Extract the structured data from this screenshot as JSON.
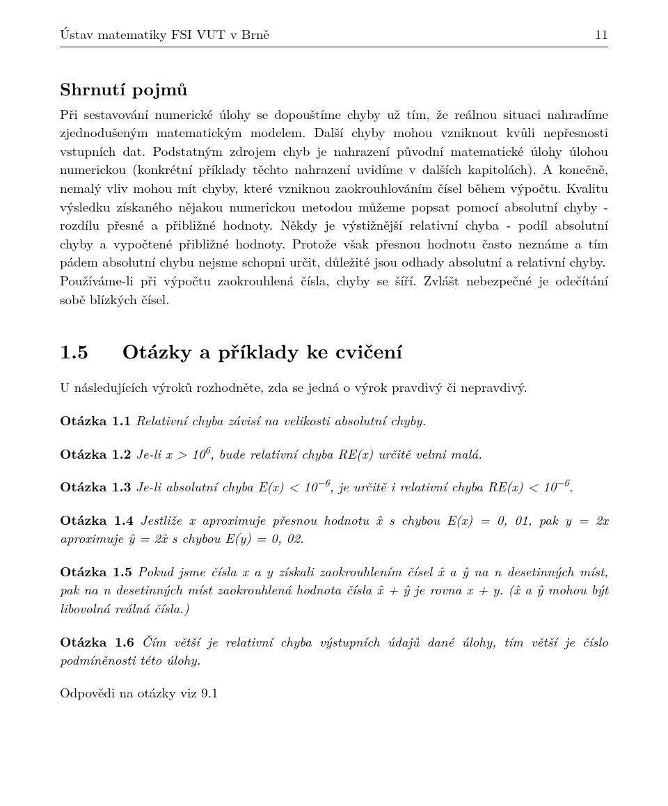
{
  "header": {
    "left": "Ústav matematiky FSI VUT v Brně",
    "page_number": "11"
  },
  "subsection": {
    "title": "Shrnutí pojmů",
    "paragraph": "Při sestavování numerické úlohy se dopouštíme chyby už tím, že reálnou situaci nahradíme zjednodušeným matematickým modelem. Další chyby mohou vzniknout kvůli nepřesnosti vstupních dat. Podstatným zdrojem chyb je nahrazení původní matematické úlohy úlohou numerickou (konkrétní příklady těchto nahrazení uvidíme v dalších kapitolách). A konečně, nemalý vliv mohou mít chyby, které vzniknou zaokrouhlováním čísel během výpočtu. Kvalitu výsledku získaného nějakou numerickou metodou můžeme popsat pomocí absolutní chyby - rozdílu přesné a přibližné hodnoty. Někdy je výstižnější relativní chyba - podíl absolutní chyby a vypočtené přibližné hodnoty. Protože však přesnou hodnotu často neznáme a tím pádem absolutní chybu nejsme schopni určit, důležité jsou odhady absolutní a relativní chyby.",
    "paragraph2": "Používáme-li při výpočtu zaokrouhlená čísla, chyby se šíří. Zvlášt nebezpečné je odečítání sobě blízkých čísel."
  },
  "section": {
    "number": "1.5",
    "title": "Otázky a příklady ke cvičení",
    "intro": "U následujících výroků rozhodněte, zda se jedná o výrok pravdivý či nepravdivý."
  },
  "questions": {
    "q1": {
      "label": "Otázka 1.1",
      "text": "Relativní chyba závisí na velikosti absolutní chyby."
    },
    "q2": {
      "label": "Otázka 1.2",
      "pre": "Je-li x > 10",
      "exp": "6",
      "post": ", bude relativní chyba RE(x) určitě velmi malá."
    },
    "q3": {
      "label": "Otázka 1.3",
      "pre": "Je-li absolutní chyba E(x) < 10",
      "exp1": "−6",
      "mid": ", je určitě i relativní chyba RE(x) < 10",
      "exp2": "−6",
      "post": "."
    },
    "q4": {
      "label": "Otázka 1.4",
      "text": "Jestliže x aproximuje přesnou hodnotu x̂ s chybou E(x) = 0, 01, pak y = 2x aproximuje ŷ = 2x̂ s chybou E(y) = 0, 02."
    },
    "q5": {
      "label": "Otázka 1.5",
      "text": "Pokud jsme čísla x a y získali zaokrouhlením čísel x̂ a ŷ na n desetinných míst, pak na n desetinných míst zaokrouhlená hodnota čísla x̂ + ŷ je rovna x + y. (x̂ a ŷ mohou být libovolná reálná čísla.)"
    },
    "q6": {
      "label": "Otázka 1.6",
      "text": "Čím větší je relativní chyba výstupních údajů dané úlohy, tím větší je číslo podmíněnosti této úlohy."
    }
  },
  "answers_ref": "Odpovědi na otázky viz 9.1"
}
